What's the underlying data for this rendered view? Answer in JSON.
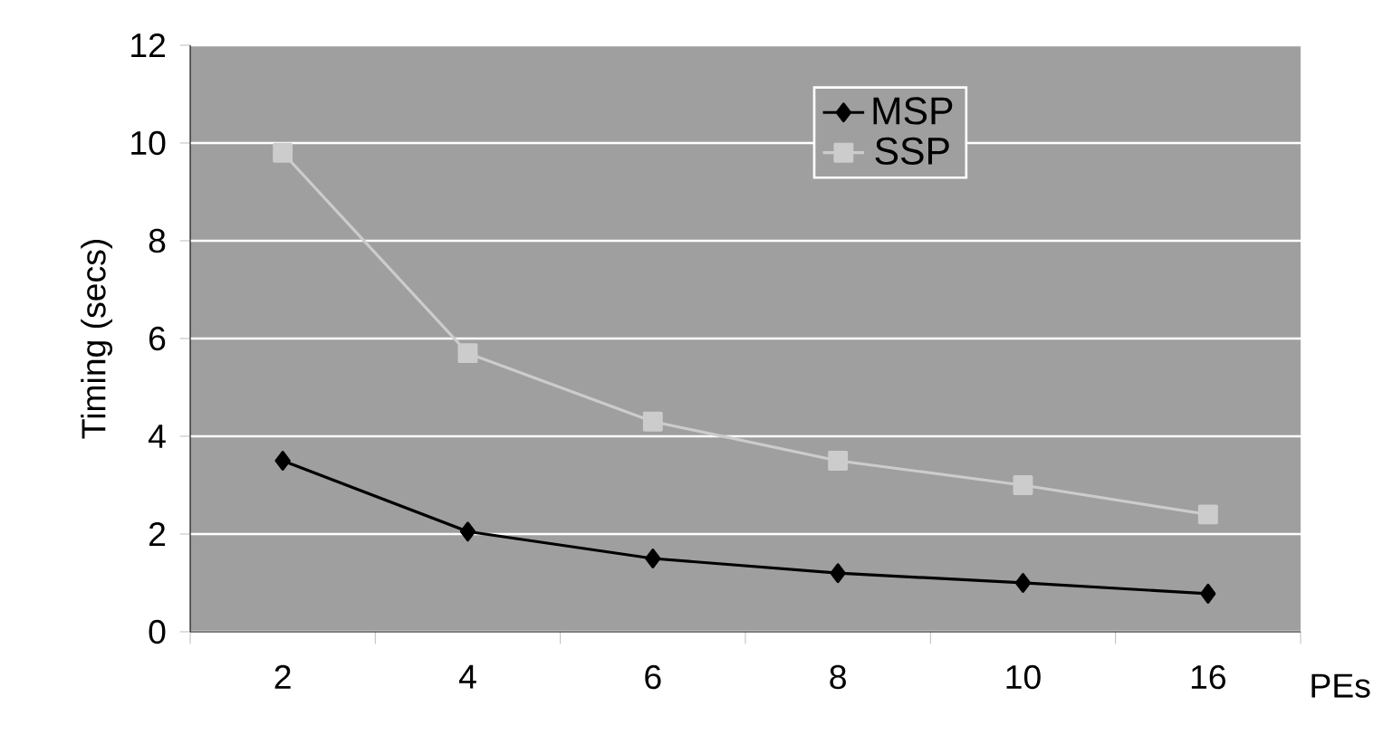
{
  "chart_data": {
    "type": "line",
    "ylabel": "Timing (secs)",
    "xlabel": "PEs",
    "categories": [
      "2",
      "4",
      "6",
      "8",
      "10",
      "16"
    ],
    "series": [
      {
        "name": "MSP",
        "color": "#000000",
        "marker": "diamond",
        "values": [
          3.5,
          2.05,
          1.5,
          1.2,
          1.0,
          0.78
        ]
      },
      {
        "name": "SSP",
        "color": "#cccccc",
        "marker": "square",
        "values": [
          9.8,
          5.7,
          4.3,
          3.5,
          3.0,
          2.4
        ]
      }
    ],
    "ylim": [
      0,
      12
    ],
    "yticks": [
      0,
      2,
      4,
      6,
      8,
      10,
      12
    ],
    "grid": "y",
    "legend": "top right"
  }
}
